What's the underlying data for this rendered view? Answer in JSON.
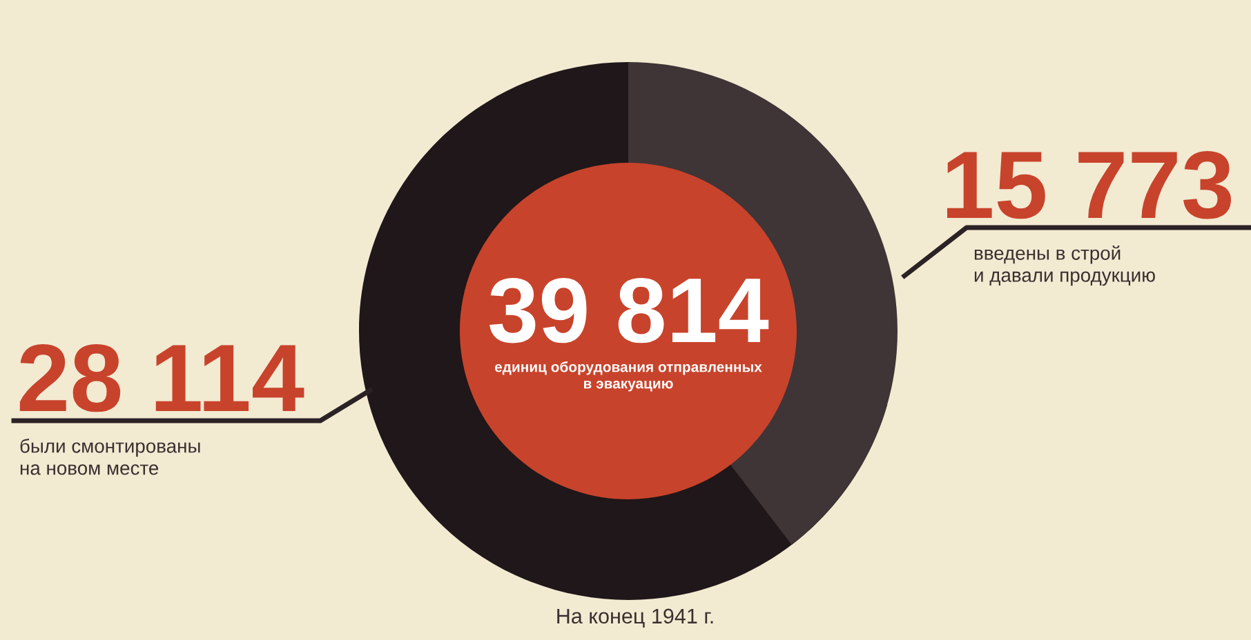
{
  "chart_data": {
    "type": "other",
    "categories": [
      "были смонтированы\nна новом месте",
      "введены в строй\nи давали продукцию",
      "единиц оборудования отправленных\nв эвакуацию"
    ],
    "values": [
      28114,
      15773,
      39814
    ],
    "value_labels": [
      "28 114",
      "15 773",
      "39 814"
    ],
    "colors": [
      "#1f1719",
      "#3f3436",
      "#c8432b"
    ],
    "annotations": [
      "На конец 1941 г."
    ]
  }
}
